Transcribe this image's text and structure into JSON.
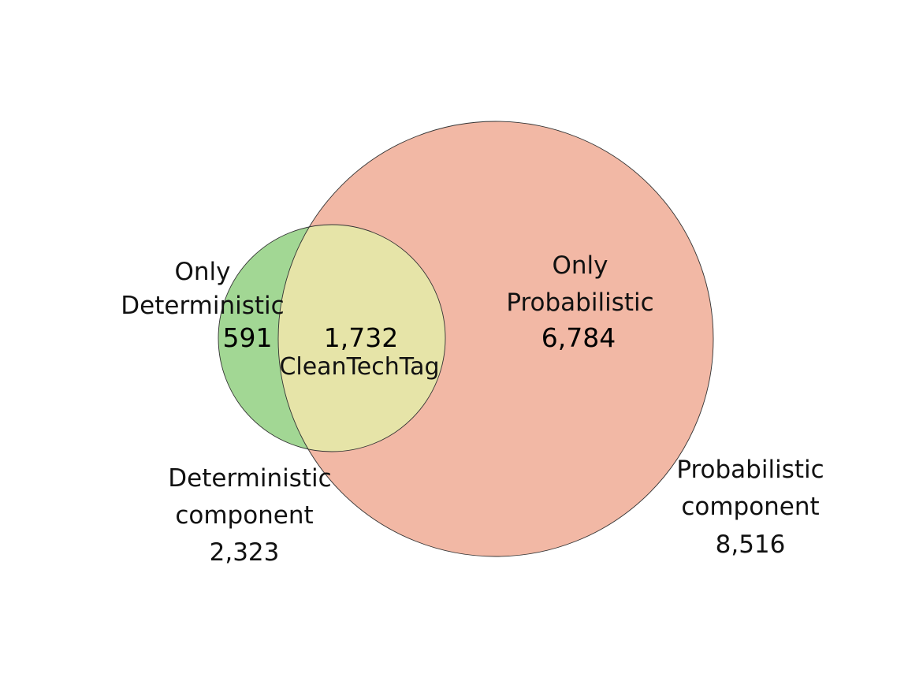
{
  "venn": {
    "sets": [
      {
        "id": "deterministic",
        "label_lines": [
          "Deterministic",
          "component"
        ],
        "total": "2,323",
        "color": "#a2d794"
      },
      {
        "id": "probabilistic",
        "label_lines": [
          "Probabilistic",
          "component"
        ],
        "total": "8,516",
        "color": "#f2b8a5"
      }
    ],
    "regions": {
      "only_deterministic": {
        "label_lines": [
          "Only",
          "Deterministic"
        ],
        "value": "591"
      },
      "intersection": {
        "label": "CleanTechTag",
        "value": "1,732",
        "color": "#e6e4a8"
      },
      "only_probabilistic": {
        "label_lines": [
          "Only",
          "Probabilistic"
        ],
        "value": "6,784"
      }
    },
    "outline_color": "#333333"
  }
}
